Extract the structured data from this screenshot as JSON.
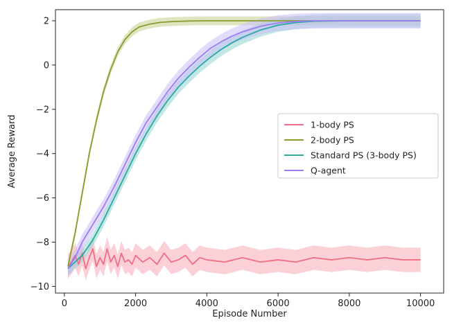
{
  "chart_data": {
    "type": "line",
    "xlabel": "Episode Number",
    "ylabel": "Average Reward",
    "xlim": [
      -250,
      10650
    ],
    "ylim": [
      -10.3,
      2.5
    ],
    "xticks": [
      0,
      2000,
      4000,
      6000,
      8000,
      10000
    ],
    "yticks": [
      -10,
      -8,
      -6,
      -4,
      -2,
      0,
      2
    ],
    "grid": false,
    "legend_position": "center-right",
    "series": [
      {
        "name": "1-body PS",
        "color": "#ef6e84",
        "band_color": "#f7a9b7",
        "band_halfwidth": 0.55,
        "x": [
          100,
          200,
          300,
          400,
          500,
          600,
          700,
          800,
          900,
          1000,
          1100,
          1200,
          1300,
          1400,
          1500,
          1600,
          1700,
          1800,
          1900,
          2000,
          2200,
          2400,
          2600,
          2800,
          3000,
          3200,
          3400,
          3600,
          3800,
          4000,
          4500,
          5000,
          5500,
          6000,
          6500,
          7000,
          7500,
          8000,
          8500,
          9000,
          9500,
          10000
        ],
        "y": [
          -9.1,
          -8.9,
          -8.6,
          -9.0,
          -8.5,
          -9.2,
          -8.7,
          -8.3,
          -9.1,
          -8.7,
          -9.0,
          -8.3,
          -8.9,
          -8.6,
          -9.1,
          -8.5,
          -8.9,
          -8.8,
          -9.0,
          -8.6,
          -8.9,
          -8.7,
          -9.0,
          -8.5,
          -8.9,
          -8.8,
          -8.6,
          -9.0,
          -8.7,
          -8.8,
          -8.9,
          -8.7,
          -8.9,
          -8.8,
          -8.9,
          -8.7,
          -8.8,
          -8.7,
          -8.8,
          -8.7,
          -8.8,
          -8.8
        ]
      },
      {
        "name": "2-body PS",
        "color": "#8c9b2e",
        "band_color": "#c7cf8e",
        "band_halfwidth": 0.2,
        "x": [
          100,
          300,
          500,
          700,
          900,
          1100,
          1300,
          1500,
          1700,
          1900,
          2100,
          2400,
          2700,
          3000,
          3500,
          4000,
          5000,
          6000,
          7000,
          8000,
          9000,
          10000
        ],
        "y": [
          -9.1,
          -7.6,
          -5.8,
          -4.0,
          -2.5,
          -1.2,
          -0.2,
          0.6,
          1.15,
          1.5,
          1.72,
          1.85,
          1.93,
          1.96,
          1.99,
          2.0,
          2.0,
          2.0,
          2.0,
          2.0,
          2.0,
          2.0
        ]
      },
      {
        "name": "Standard PS (3-body PS)",
        "color": "#2ba8a3",
        "band_color": "#8fd3cf",
        "band_halfwidth": 0.3,
        "x": [
          100,
          300,
          500,
          800,
          1100,
          1400,
          1700,
          2000,
          2300,
          2600,
          2900,
          3200,
          3500,
          3800,
          4100,
          4400,
          4700,
          5000,
          5500,
          6000,
          6500,
          7000,
          8000,
          9000,
          10000
        ],
        "y": [
          -9.2,
          -8.9,
          -8.6,
          -7.9,
          -7.0,
          -6.0,
          -5.0,
          -4.0,
          -3.1,
          -2.3,
          -1.6,
          -1.0,
          -0.5,
          -0.05,
          0.35,
          0.7,
          1.0,
          1.25,
          1.58,
          1.8,
          1.92,
          1.98,
          2.0,
          2.0,
          2.0
        ]
      },
      {
        "name": "Q-agent",
        "color": "#9b7df0",
        "band_color": "#cbbdf7",
        "band_halfwidth": 0.35,
        "x": [
          100,
          300,
          500,
          800,
          1100,
          1400,
          1700,
          2000,
          2300,
          2600,
          2900,
          3200,
          3500,
          3800,
          4100,
          4400,
          4700,
          5000,
          5500,
          6000,
          6500,
          7000,
          8000,
          9000,
          10000
        ],
        "y": [
          -9.2,
          -8.7,
          -8.0,
          -7.2,
          -6.4,
          -5.5,
          -4.5,
          -3.5,
          -2.6,
          -1.9,
          -1.2,
          -0.6,
          -0.1,
          0.35,
          0.75,
          1.05,
          1.3,
          1.5,
          1.75,
          1.9,
          1.97,
          2.0,
          2.0,
          2.0,
          2.0
        ]
      }
    ]
  }
}
